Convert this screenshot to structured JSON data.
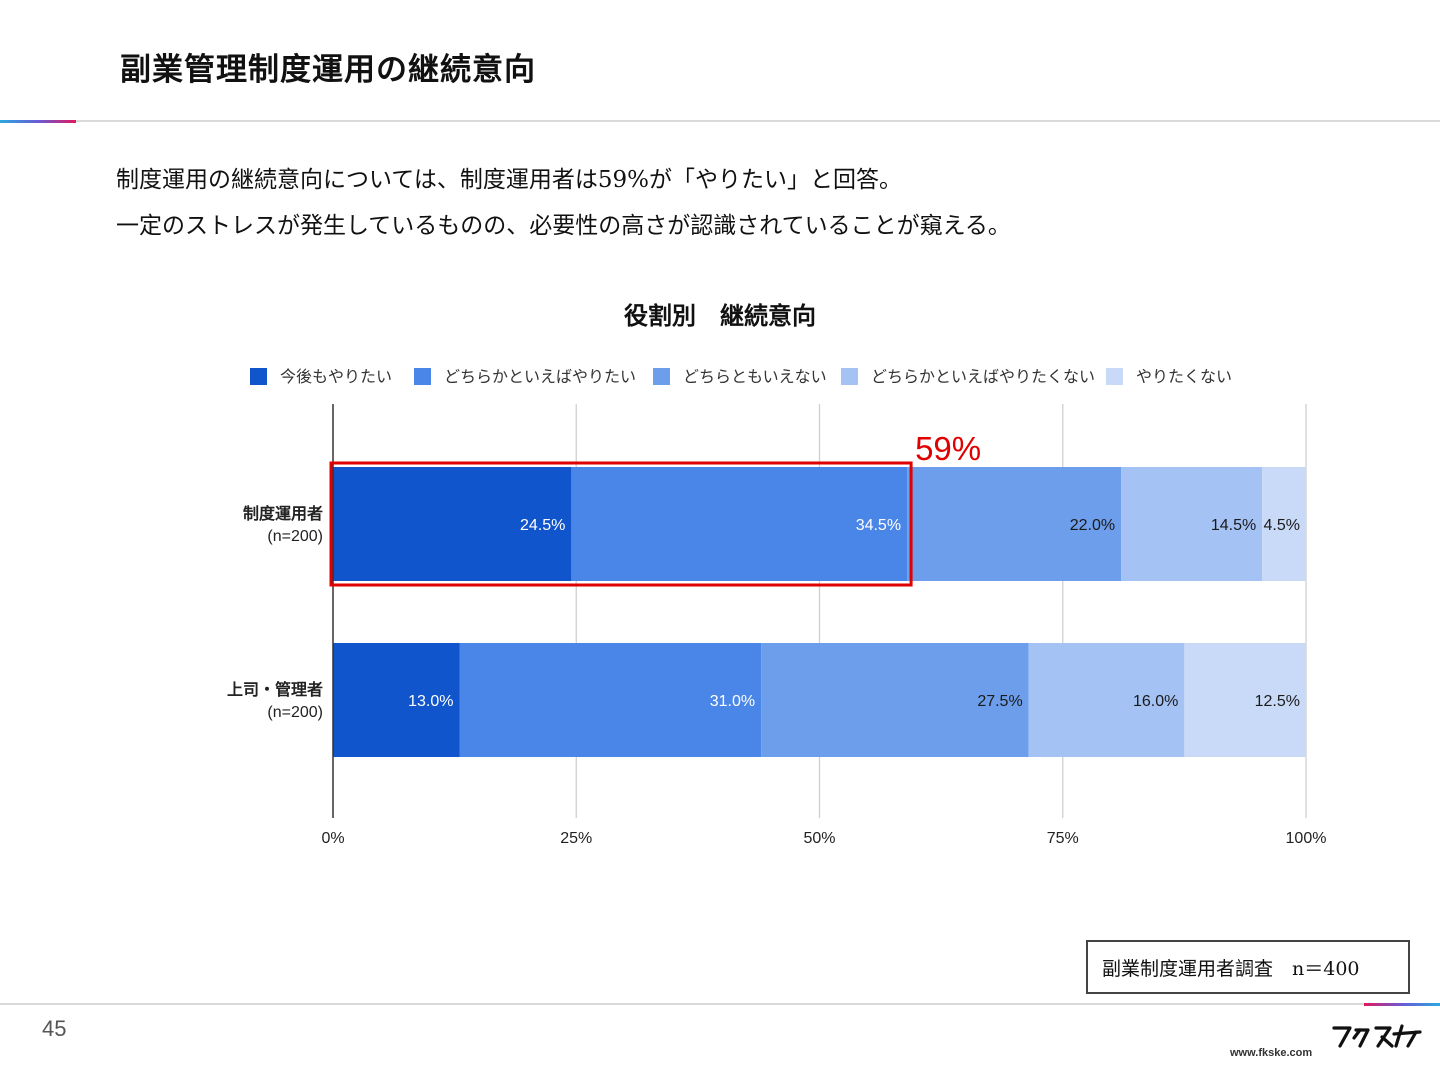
{
  "page": {
    "title": "副業管理制度運用の継続意向",
    "lead_line1": "制度運用の継続意向については、制度運用者は59%が「やりたい」と回答。",
    "lead_line2": "一定のストレスが発生しているものの、必要性の高さが認識されていることが窺える。",
    "source_note": "副業制度運用者調査　n＝400",
    "page_number": "45",
    "site_url": "www.fkske.com",
    "logo_icon": "fukusuke-logo-icon"
  },
  "chart_data": {
    "type": "bar",
    "orientation": "horizontal",
    "stacked": true,
    "title": "役割別　継続意向",
    "categories": [
      "制度運用者\n(n=200)",
      "上司・管理者\n(n=200)"
    ],
    "series": [
      {
        "name": "今後もやりたい",
        "color": "#1155cc",
        "values": [
          24.5,
          13.0
        ],
        "labels": [
          "24.5%",
          "13.0%"
        ],
        "label_color": "#ffffff"
      },
      {
        "name": "どちらかといえばやりたい",
        "color": "#4a86e8",
        "values": [
          34.5,
          31.0
        ],
        "labels": [
          "34.5%",
          "31.0%"
        ],
        "label_color": "#ffffff"
      },
      {
        "name": "どちらともいえない",
        "color": "#6d9eeb",
        "values": [
          22.0,
          27.5
        ],
        "labels": [
          "22.0%",
          "27.5%"
        ],
        "label_color": "#1a1a1a"
      },
      {
        "name": "どちらかといえばやりたくない",
        "color": "#a4c2f4",
        "values": [
          14.5,
          16.0
        ],
        "labels": [
          "14.5%",
          "16.0%"
        ],
        "label_color": "#1a1a1a"
      },
      {
        "name": "やりたくない",
        "color": "#c9daf8",
        "values": [
          4.5,
          12.5
        ],
        "labels": [
          "4.5%",
          "12.5%"
        ],
        "label_color": "#1a1a1a"
      }
    ],
    "xlim": [
      0,
      100
    ],
    "xticks": [
      "0%",
      "25%",
      "50%",
      "75%",
      "100%"
    ],
    "grid": true,
    "legend": "top",
    "highlight": {
      "category_index": 0,
      "from": 0,
      "to": 59,
      "label": "59%",
      "color": "#e00000"
    }
  }
}
